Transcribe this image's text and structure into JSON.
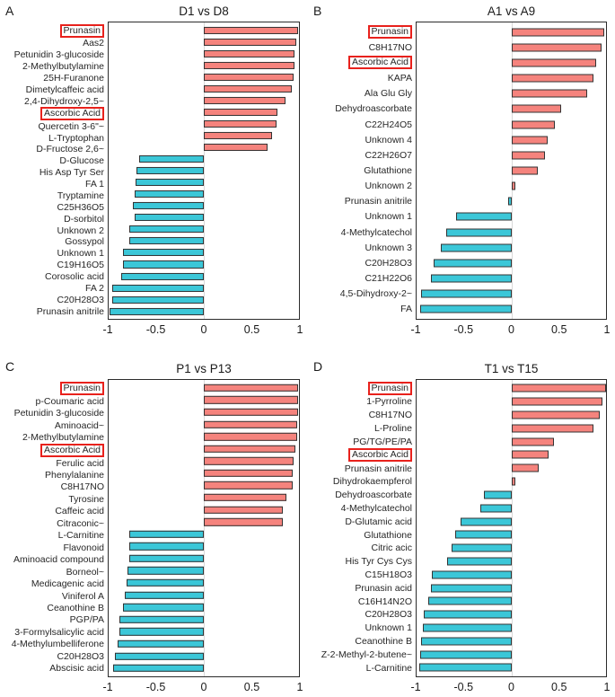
{
  "colors": {
    "positive_bar": "#f5837d",
    "negative_bar": "#3bc7d8",
    "bar_outline": "#333333",
    "highlight_box": "#e8211c",
    "zero_line": "#d9d9d9",
    "plot_border": "#2b2b2b"
  },
  "chart_data": [
    {
      "type": "bar",
      "orientation": "horizontal",
      "panel": "A",
      "title": "D1 vs D8",
      "xlim": [
        -1,
        1
      ],
      "xticks": [
        "-1",
        "-0.5",
        "0",
        "0.5",
        "1"
      ],
      "grid": false,
      "entries": [
        {
          "label": "Prunasin",
          "value": 0.99,
          "boxed": true
        },
        {
          "label": "Aas2",
          "value": 0.97
        },
        {
          "label": "Petunidin 3-glucoside",
          "value": 0.95
        },
        {
          "label": "2-Methylbutylamine",
          "value": 0.95
        },
        {
          "label": "25H-Furanone",
          "value": 0.94
        },
        {
          "label": "Dimetylcaffeic acid",
          "value": 0.92
        },
        {
          "label": "2,4-Dihydroxy-2,5~",
          "value": 0.86
        },
        {
          "label": "Ascorbic Acid",
          "value": 0.77,
          "boxed": true
        },
        {
          "label": "Quercetin 3-6\"~",
          "value": 0.76
        },
        {
          "label": "L-Tryptophan",
          "value": 0.72
        },
        {
          "label": "D-Fructose 2,6~",
          "value": 0.67
        },
        {
          "label": "D-Glucose",
          "value": -0.68
        },
        {
          "label": "His Asp Tyr Ser",
          "value": -0.71
        },
        {
          "label": "FA 1",
          "value": -0.72
        },
        {
          "label": "Tryptamine",
          "value": -0.73
        },
        {
          "label": "C25H36O5",
          "value": -0.75
        },
        {
          "label": "D-sorbitol",
          "value": -0.73
        },
        {
          "label": "Unknown 2",
          "value": -0.78
        },
        {
          "label": "Gossypol",
          "value": -0.78
        },
        {
          "label": "Unknown 1",
          "value": -0.85
        },
        {
          "label": "C19H16O5",
          "value": -0.85
        },
        {
          "label": "Corosolic acid",
          "value": -0.87
        },
        {
          "label": "FA 2",
          "value": -0.96
        },
        {
          "label": "C20H28O3",
          "value": -0.96
        },
        {
          "label": "Prunasin anitrile",
          "value": -0.99
        }
      ]
    },
    {
      "type": "bar",
      "orientation": "horizontal",
      "panel": "B",
      "title": "A1 vs A9",
      "xlim": [
        -1,
        1
      ],
      "xticks": [
        "-1",
        "-0.5",
        "0",
        "0.5",
        "1"
      ],
      "grid": false,
      "entries": [
        {
          "label": "Prunasin",
          "value": 0.98,
          "boxed": true
        },
        {
          "label": "C8H17NO",
          "value": 0.95
        },
        {
          "label": "Ascorbic Acid",
          "value": 0.9,
          "boxed": true
        },
        {
          "label": "KAPA",
          "value": 0.87
        },
        {
          "label": "Ala Glu Gly",
          "value": 0.8
        },
        {
          "label": "Dehydroascorbate",
          "value": 0.53
        },
        {
          "label": "C22H24O5",
          "value": 0.46
        },
        {
          "label": "Unknown 4",
          "value": 0.38
        },
        {
          "label": "C22H26O7",
          "value": 0.36
        },
        {
          "label": "Glutathione",
          "value": 0.28
        },
        {
          "label": "Unknown 2",
          "value": 0.04
        },
        {
          "label": "Prunasin anitrile",
          "value": -0.03
        },
        {
          "label": "Unknown 1",
          "value": -0.58
        },
        {
          "label": "4-Methylcatechol",
          "value": -0.69
        },
        {
          "label": "Unknown 3",
          "value": -0.74
        },
        {
          "label": "C20H28O3",
          "value": -0.82
        },
        {
          "label": "C21H22O6",
          "value": -0.85
        },
        {
          "label": "4,5-Dihydroxy-2~",
          "value": -0.95
        },
        {
          "label": "FA",
          "value": -0.96
        }
      ]
    },
    {
      "type": "bar",
      "orientation": "horizontal",
      "panel": "C",
      "title": "P1 vs P13",
      "xlim": [
        -1,
        1
      ],
      "xticks": [
        "-1",
        "-0.5",
        "0",
        "0.5",
        "1"
      ],
      "grid": false,
      "entries": [
        {
          "label": "Prunasin",
          "value": 0.99,
          "boxed": true
        },
        {
          "label": "p-Coumaric acid",
          "value": 0.99
        },
        {
          "label": "Petunidin 3-glucoside",
          "value": 0.99
        },
        {
          "label": "Aminoacid~",
          "value": 0.98
        },
        {
          "label": "2-Methylbutylamine",
          "value": 0.98
        },
        {
          "label": "Ascorbic Acid",
          "value": 0.96,
          "boxed": true
        },
        {
          "label": "Ferulic acid",
          "value": 0.94
        },
        {
          "label": "Phenylalanine",
          "value": 0.93
        },
        {
          "label": "C8H17NO",
          "value": 0.93
        },
        {
          "label": "Tyrosine",
          "value": 0.87
        },
        {
          "label": "Caffeic acid",
          "value": 0.83
        },
        {
          "label": "Citraconic~",
          "value": 0.83
        },
        {
          "label": "L-Carnitine",
          "value": -0.78
        },
        {
          "label": "Flavonoid",
          "value": -0.78
        },
        {
          "label": "Aminoacid compound",
          "value": -0.78
        },
        {
          "label": "Borneol~",
          "value": -0.8
        },
        {
          "label": "Medicagenic acid",
          "value": -0.81
        },
        {
          "label": "Viniferol A",
          "value": -0.83
        },
        {
          "label": "Ceanothine B",
          "value": -0.85
        },
        {
          "label": "PGP/PA",
          "value": -0.89
        },
        {
          "label": "3-Formylsalicylic acid",
          "value": -0.89
        },
        {
          "label": "4-Methylumbelliferone",
          "value": -0.91
        },
        {
          "label": "C20H28O3",
          "value": -0.93
        },
        {
          "label": "Abscisic acid",
          "value": -0.95
        }
      ]
    },
    {
      "type": "bar",
      "orientation": "horizontal",
      "panel": "D",
      "title": "T1 vs T15",
      "xlim": [
        -1,
        1
      ],
      "xticks": [
        "-1",
        "-0.5",
        "0",
        "0.5",
        "1"
      ],
      "grid": false,
      "entries": [
        {
          "label": "Prunasin",
          "value": 1.0,
          "boxed": true
        },
        {
          "label": "1-Pyrroline",
          "value": 0.96
        },
        {
          "label": "C8H17NO",
          "value": 0.93
        },
        {
          "label": "L-Proline",
          "value": 0.87
        },
        {
          "label": "PG/TG/PE/PA",
          "value": 0.45
        },
        {
          "label": "Ascorbic Acid",
          "value": 0.39,
          "boxed": true
        },
        {
          "label": "Prunasin anitrile",
          "value": 0.29
        },
        {
          "label": "Dihydrokaempferol",
          "value": 0.04
        },
        {
          "label": "Dehydroascorbate",
          "value": -0.29
        },
        {
          "label": "4-Methylcatechol",
          "value": -0.33
        },
        {
          "label": "D-Glutamic acid",
          "value": -0.54
        },
        {
          "label": "Glutathione",
          "value": -0.59
        },
        {
          "label": "Citric acic",
          "value": -0.63
        },
        {
          "label": "His Tyr Cys Cys",
          "value": -0.68
        },
        {
          "label": "C15H18O3",
          "value": -0.84
        },
        {
          "label": "Prunasin acid",
          "value": -0.85
        },
        {
          "label": "C16H14N2O",
          "value": -0.88
        },
        {
          "label": "C20H28O3",
          "value": -0.92
        },
        {
          "label": "Unknown 1",
          "value": -0.93
        },
        {
          "label": "Ceanothine B",
          "value": -0.95
        },
        {
          "label": "Z-2-Methyl-2-butene~",
          "value": -0.96
        },
        {
          "label": "L-Carnitine",
          "value": -0.97
        }
      ]
    }
  ]
}
